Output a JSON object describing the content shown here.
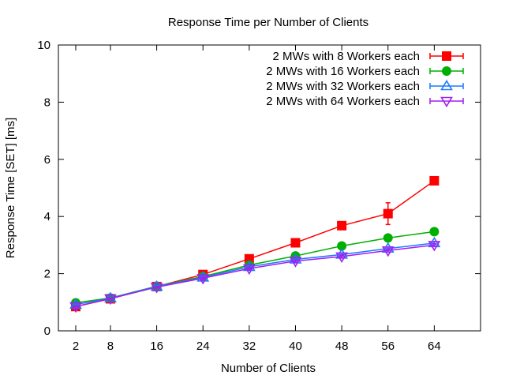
{
  "chart_data": {
    "type": "line",
    "title": "Response Time per Number of Clients",
    "xlabel": "Number of Clients",
    "ylabel": "Response Time [SET] [ms]",
    "x": [
      2,
      8,
      16,
      24,
      32,
      40,
      48,
      56,
      64
    ],
    "xticks": [
      "2",
      "8",
      "16",
      "24",
      "32",
      "40",
      "48",
      "56",
      "64"
    ],
    "xlim": [
      -1,
      72
    ],
    "ylim": [
      0,
      10
    ],
    "yticks": [
      0,
      2,
      4,
      6,
      8,
      10
    ],
    "grid": false,
    "legend_position": "top-right",
    "series": [
      {
        "name": "2 MWs with 8 Workers each",
        "color": "#ff0000",
        "marker": "square",
        "values": [
          0.85,
          1.12,
          1.55,
          1.97,
          2.52,
          3.08,
          3.68,
          4.1,
          5.25
        ],
        "err": [
          0.03,
          0.03,
          0.04,
          0.05,
          0.06,
          0.07,
          0.08,
          0.38,
          0.12
        ]
      },
      {
        "name": "2 MWs with 16 Workers each",
        "color": "#00b000",
        "marker": "circle",
        "values": [
          0.98,
          1.15,
          1.56,
          1.9,
          2.3,
          2.62,
          2.97,
          3.25,
          3.47
        ],
        "err": [
          0.03,
          0.03,
          0.03,
          0.04,
          0.04,
          0.05,
          0.05,
          0.06,
          0.06
        ]
      },
      {
        "name": "2 MWs with 32 Workers each",
        "color": "#1e78ff",
        "marker": "triangle-up",
        "values": [
          0.92,
          1.14,
          1.55,
          1.87,
          2.24,
          2.5,
          2.67,
          2.88,
          3.07
        ],
        "err": [
          0.03,
          0.03,
          0.03,
          0.04,
          0.04,
          0.04,
          0.05,
          0.05,
          0.06
        ]
      },
      {
        "name": "2 MWs with 64 Workers each",
        "color": "#a020f0",
        "marker": "triangle-down",
        "values": [
          0.85,
          1.13,
          1.53,
          1.84,
          2.18,
          2.44,
          2.6,
          2.81,
          3.0
        ],
        "err": [
          0.03,
          0.03,
          0.03,
          0.04,
          0.04,
          0.04,
          0.05,
          0.05,
          0.05
        ]
      }
    ]
  }
}
